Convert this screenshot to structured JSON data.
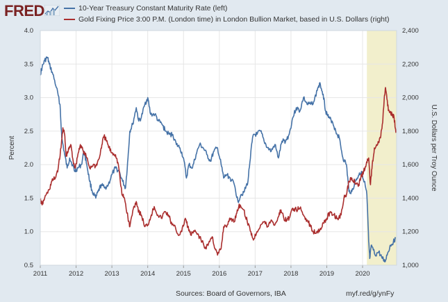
{
  "header": {
    "logo_text": "FRED"
  },
  "colors": {
    "series1": "#4572a7",
    "series2": "#aa2e2e",
    "recession": "#f2efcc",
    "grid": "#e6e6e6",
    "panel": "#ffffff",
    "frame": "#e1e9f0"
  },
  "footer": {
    "source": "Sources: Board of Governors, IBA",
    "link": "myf.red/g/ynFy"
  },
  "chart_data": {
    "type": "line",
    "x_ticks": [
      "2011",
      "2012",
      "2013",
      "2014",
      "2015",
      "2016",
      "2017",
      "2018",
      "2019",
      "2020"
    ],
    "xlim": [
      2011.0,
      2020.95
    ],
    "left_axis": {
      "label": "Percent",
      "ticks": [
        "0.5",
        "1.0",
        "1.5",
        "2.0",
        "2.5",
        "3.0",
        "3.5",
        "4.0"
      ],
      "ylim": [
        0.5,
        4.0
      ]
    },
    "right_axis": {
      "label": "U.S. Dollars per Troy Ounce",
      "ticks": [
        "1,000",
        "1,200",
        "1,400",
        "1,600",
        "1,800",
        "2,000",
        "2,200",
        "2,400"
      ],
      "ylim": [
        1000,
        2400
      ]
    },
    "shaded_region": {
      "x_start": 2020.12,
      "x_end": 2020.95
    },
    "series": [
      {
        "name": "10-Year Treasury Constant Maturity Rate (left)",
        "axis": "left",
        "points": [
          [
            2011.0,
            3.35
          ],
          [
            2011.05,
            3.45
          ],
          [
            2011.12,
            3.55
          ],
          [
            2011.2,
            3.6
          ],
          [
            2011.25,
            3.5
          ],
          [
            2011.35,
            3.35
          ],
          [
            2011.45,
            3.15
          ],
          [
            2011.55,
            2.9
          ],
          [
            2011.6,
            2.4
          ],
          [
            2011.68,
            2.15
          ],
          [
            2011.75,
            1.95
          ],
          [
            2011.82,
            2.1
          ],
          [
            2011.9,
            2.0
          ],
          [
            2011.96,
            1.9
          ],
          [
            2012.05,
            1.95
          ],
          [
            2012.15,
            2.0
          ],
          [
            2012.22,
            2.2
          ],
          [
            2012.3,
            2.0
          ],
          [
            2012.38,
            1.75
          ],
          [
            2012.45,
            1.6
          ],
          [
            2012.55,
            1.5
          ],
          [
            2012.62,
            1.6
          ],
          [
            2012.7,
            1.7
          ],
          [
            2012.8,
            1.65
          ],
          [
            2012.9,
            1.7
          ],
          [
            2013.0,
            1.85
          ],
          [
            2013.1,
            1.95
          ],
          [
            2013.2,
            1.9
          ],
          [
            2013.3,
            1.75
          ],
          [
            2013.38,
            1.65
          ],
          [
            2013.45,
            2.1
          ],
          [
            2013.5,
            2.5
          ],
          [
            2013.58,
            2.6
          ],
          [
            2013.68,
            2.85
          ],
          [
            2013.75,
            2.65
          ],
          [
            2013.82,
            2.7
          ],
          [
            2013.92,
            2.9
          ],
          [
            2014.0,
            3.0
          ],
          [
            2014.08,
            2.75
          ],
          [
            2014.2,
            2.75
          ],
          [
            2014.3,
            2.65
          ],
          [
            2014.4,
            2.6
          ],
          [
            2014.5,
            2.5
          ],
          [
            2014.6,
            2.45
          ],
          [
            2014.7,
            2.45
          ],
          [
            2014.8,
            2.3
          ],
          [
            2014.9,
            2.25
          ],
          [
            2015.0,
            2.1
          ],
          [
            2015.08,
            1.8
          ],
          [
            2015.15,
            2.0
          ],
          [
            2015.25,
            1.95
          ],
          [
            2015.35,
            2.15
          ],
          [
            2015.45,
            2.3
          ],
          [
            2015.55,
            2.25
          ],
          [
            2015.65,
            2.15
          ],
          [
            2015.75,
            2.05
          ],
          [
            2015.85,
            2.2
          ],
          [
            2015.95,
            2.25
          ],
          [
            2016.05,
            2.0
          ],
          [
            2016.12,
            1.8
          ],
          [
            2016.2,
            1.85
          ],
          [
            2016.3,
            1.8
          ],
          [
            2016.42,
            1.7
          ],
          [
            2016.52,
            1.45
          ],
          [
            2016.6,
            1.55
          ],
          [
            2016.7,
            1.6
          ],
          [
            2016.8,
            1.75
          ],
          [
            2016.88,
            2.2
          ],
          [
            2016.95,
            2.45
          ],
          [
            2017.05,
            2.45
          ],
          [
            2017.15,
            2.5
          ],
          [
            2017.25,
            2.35
          ],
          [
            2017.35,
            2.25
          ],
          [
            2017.45,
            2.2
          ],
          [
            2017.55,
            2.3
          ],
          [
            2017.65,
            2.1
          ],
          [
            2017.75,
            2.35
          ],
          [
            2017.85,
            2.35
          ],
          [
            2017.95,
            2.45
          ],
          [
            2018.05,
            2.7
          ],
          [
            2018.15,
            2.85
          ],
          [
            2018.25,
            2.8
          ],
          [
            2018.35,
            3.0
          ],
          [
            2018.45,
            2.9
          ],
          [
            2018.55,
            2.9
          ],
          [
            2018.65,
            2.95
          ],
          [
            2018.75,
            3.15
          ],
          [
            2018.82,
            3.2
          ],
          [
            2018.9,
            3.05
          ],
          [
            2018.97,
            2.8
          ],
          [
            2019.05,
            2.7
          ],
          [
            2019.15,
            2.65
          ],
          [
            2019.25,
            2.5
          ],
          [
            2019.35,
            2.4
          ],
          [
            2019.45,
            2.1
          ],
          [
            2019.55,
            2.0
          ],
          [
            2019.62,
            1.6
          ],
          [
            2019.7,
            1.6
          ],
          [
            2019.8,
            1.75
          ],
          [
            2019.9,
            1.85
          ],
          [
            2019.97,
            1.9
          ],
          [
            2020.05,
            1.75
          ],
          [
            2020.12,
            1.55
          ],
          [
            2020.17,
            0.85
          ],
          [
            2020.2,
            0.6
          ],
          [
            2020.25,
            0.8
          ],
          [
            2020.35,
            0.65
          ],
          [
            2020.45,
            0.7
          ],
          [
            2020.55,
            0.6
          ],
          [
            2020.62,
            0.55
          ],
          [
            2020.7,
            0.68
          ],
          [
            2020.78,
            0.8
          ],
          [
            2020.86,
            0.85
          ],
          [
            2020.92,
            0.9
          ]
        ]
      },
      {
        "name": "Gold Fixing Price 3:00 P.M. (London time) in London Bullion Market, based in U.S. Dollars (right)",
        "axis": "right",
        "points": [
          [
            2011.0,
            1390
          ],
          [
            2011.05,
            1360
          ],
          [
            2011.12,
            1400
          ],
          [
            2011.25,
            1450
          ],
          [
            2011.32,
            1500
          ],
          [
            2011.42,
            1520
          ],
          [
            2011.5,
            1580
          ],
          [
            2011.58,
            1700
          ],
          [
            2011.63,
            1820
          ],
          [
            2011.68,
            1780
          ],
          [
            2011.72,
            1650
          ],
          [
            2011.78,
            1680
          ],
          [
            2011.85,
            1720
          ],
          [
            2011.92,
            1620
          ],
          [
            2011.98,
            1580
          ],
          [
            2012.05,
            1660
          ],
          [
            2012.12,
            1720
          ],
          [
            2012.2,
            1680
          ],
          [
            2012.3,
            1640
          ],
          [
            2012.38,
            1580
          ],
          [
            2012.48,
            1600
          ],
          [
            2012.55,
            1590
          ],
          [
            2012.65,
            1640
          ],
          [
            2012.72,
            1720
          ],
          [
            2012.78,
            1770
          ],
          [
            2012.85,
            1740
          ],
          [
            2012.92,
            1700
          ],
          [
            2013.0,
            1670
          ],
          [
            2013.1,
            1660
          ],
          [
            2013.18,
            1600
          ],
          [
            2013.28,
            1420
          ],
          [
            2013.35,
            1400
          ],
          [
            2013.45,
            1280
          ],
          [
            2013.5,
            1230
          ],
          [
            2013.6,
            1340
          ],
          [
            2013.68,
            1380
          ],
          [
            2013.75,
            1320
          ],
          [
            2013.82,
            1300
          ],
          [
            2013.92,
            1230
          ],
          [
            2014.0,
            1240
          ],
          [
            2014.1,
            1300
          ],
          [
            2014.18,
            1350
          ],
          [
            2014.28,
            1300
          ],
          [
            2014.38,
            1280
          ],
          [
            2014.48,
            1320
          ],
          [
            2014.58,
            1300
          ],
          [
            2014.68,
            1240
          ],
          [
            2014.78,
            1220
          ],
          [
            2014.85,
            1180
          ],
          [
            2014.95,
            1200
          ],
          [
            2015.05,
            1280
          ],
          [
            2015.12,
            1230
          ],
          [
            2015.2,
            1180
          ],
          [
            2015.3,
            1200
          ],
          [
            2015.42,
            1180
          ],
          [
            2015.52,
            1140
          ],
          [
            2015.6,
            1100
          ],
          [
            2015.7,
            1130
          ],
          [
            2015.8,
            1170
          ],
          [
            2015.88,
            1100
          ],
          [
            2015.95,
            1060
          ],
          [
            2016.05,
            1100
          ],
          [
            2016.12,
            1230
          ],
          [
            2016.22,
            1240
          ],
          [
            2016.32,
            1280
          ],
          [
            2016.42,
            1260
          ],
          [
            2016.5,
            1330
          ],
          [
            2016.58,
            1360
          ],
          [
            2016.68,
            1330
          ],
          [
            2016.78,
            1260
          ],
          [
            2016.88,
            1200
          ],
          [
            2016.95,
            1150
          ],
          [
            2017.05,
            1200
          ],
          [
            2017.15,
            1240
          ],
          [
            2017.25,
            1260
          ],
          [
            2017.35,
            1230
          ],
          [
            2017.45,
            1270
          ],
          [
            2017.55,
            1240
          ],
          [
            2017.65,
            1290
          ],
          [
            2017.72,
            1330
          ],
          [
            2017.8,
            1280
          ],
          [
            2017.88,
            1270
          ],
          [
            2017.95,
            1280
          ],
          [
            2018.05,
            1340
          ],
          [
            2018.15,
            1330
          ],
          [
            2018.25,
            1340
          ],
          [
            2018.35,
            1300
          ],
          [
            2018.45,
            1270
          ],
          [
            2018.55,
            1230
          ],
          [
            2018.62,
            1200
          ],
          [
            2018.72,
            1200
          ],
          [
            2018.82,
            1220
          ],
          [
            2018.92,
            1250
          ],
          [
            2019.0,
            1280
          ],
          [
            2019.1,
            1320
          ],
          [
            2019.2,
            1300
          ],
          [
            2019.3,
            1280
          ],
          [
            2019.4,
            1300
          ],
          [
            2019.48,
            1400
          ],
          [
            2019.55,
            1420
          ],
          [
            2019.62,
            1500
          ],
          [
            2019.7,
            1520
          ],
          [
            2019.78,
            1500
          ],
          [
            2019.88,
            1470
          ],
          [
            2019.95,
            1520
          ],
          [
            2020.03,
            1560
          ],
          [
            2020.1,
            1600
          ],
          [
            2020.17,
            1640
          ],
          [
            2020.22,
            1480
          ],
          [
            2020.27,
            1600
          ],
          [
            2020.33,
            1700
          ],
          [
            2020.42,
            1720
          ],
          [
            2020.5,
            1760
          ],
          [
            2020.56,
            1850
          ],
          [
            2020.6,
            1980
          ],
          [
            2020.64,
            2060
          ],
          [
            2020.7,
            1950
          ],
          [
            2020.76,
            1910
          ],
          [
            2020.82,
            1900
          ],
          [
            2020.88,
            1880
          ],
          [
            2020.93,
            1790
          ]
        ]
      }
    ]
  }
}
